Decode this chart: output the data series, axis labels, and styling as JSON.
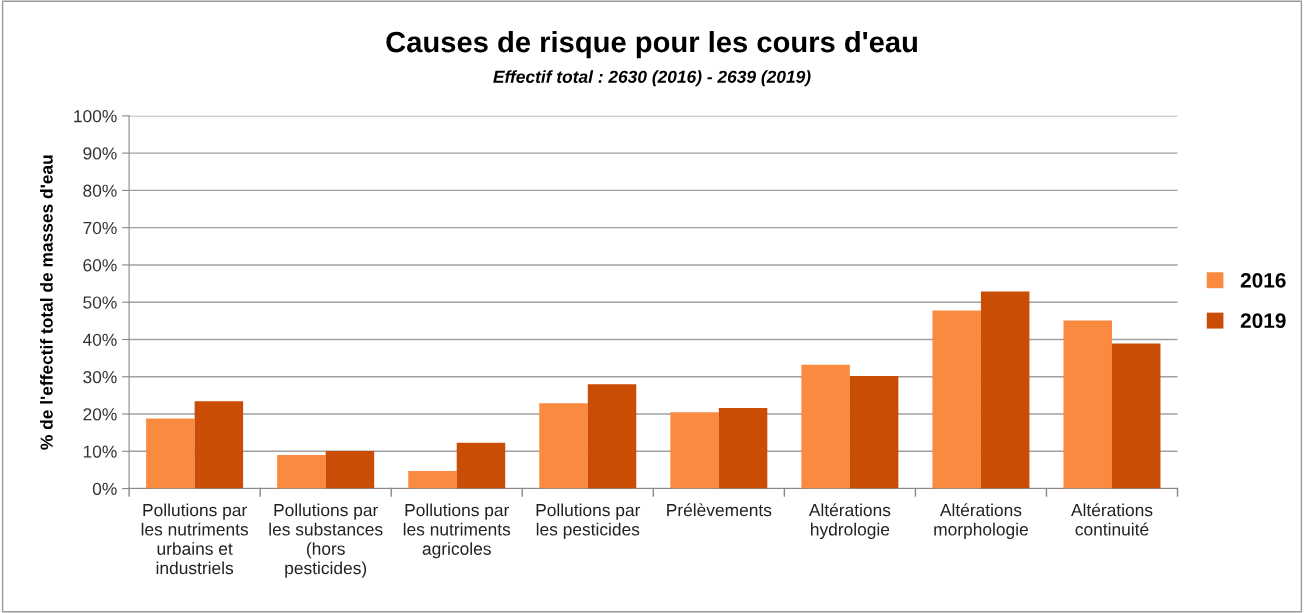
{
  "chart_data": {
    "type": "bar",
    "title": "Causes de risque pour les cours d'eau",
    "subtitle": "Effectif total : 2630 (2016) - 2639 (2019)",
    "ylabel": "% de l'effectif total de masses d'eau",
    "categories": [
      "Pollutions par les nutriments urbains et industriels",
      "Pollutions par les substances (hors pesticides)",
      "Pollutions par les nutriments agricoles",
      "Pollutions par les pesticides",
      "Prélèvements",
      "Altérations hydrologie",
      "Altérations morphologie",
      "Altérations continuité"
    ],
    "series": [
      {
        "name": "2016",
        "color": "#f98a3f",
        "values": [
          18.8,
          9.0,
          4.7,
          22.9,
          20.5,
          33.2,
          47.8,
          45.1
        ]
      },
      {
        "name": "2019",
        "color": "#c94d05",
        "values": [
          23.4,
          10.1,
          12.3,
          28.0,
          21.6,
          30.2,
          52.9,
          38.9
        ]
      }
    ],
    "ylim": [
      0,
      100
    ],
    "yticks": [
      {
        "value": 0,
        "label": "0%"
      },
      {
        "value": 10,
        "label": "10%"
      },
      {
        "value": 20,
        "label": "20%"
      },
      {
        "value": 30,
        "label": "30%"
      },
      {
        "value": 40,
        "label": "40%"
      },
      {
        "value": 50,
        "label": "50%"
      },
      {
        "value": 60,
        "label": "60%"
      },
      {
        "value": 70,
        "label": "70%"
      },
      {
        "value": 80,
        "label": "80%"
      },
      {
        "value": 90,
        "label": "90%"
      },
      {
        "value": 100,
        "label": "100%"
      }
    ],
    "grid": "y",
    "legend": "right"
  }
}
